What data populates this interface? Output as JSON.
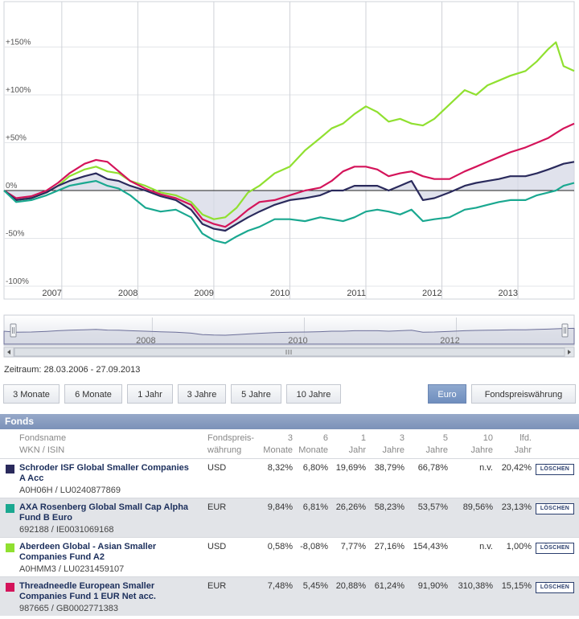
{
  "chart_data": {
    "type": "line",
    "y_ticks": [
      "+150%",
      "+100%",
      "+50%",
      "0%",
      "-50%",
      "-100%"
    ],
    "y_tick_values": [
      150,
      100,
      50,
      0,
      -50,
      -100
    ],
    "ylim": [
      -100,
      150
    ],
    "x_tick_labels": [
      "2007",
      "2008",
      "2009",
      "2010",
      "2011",
      "2012",
      "2013"
    ],
    "x_years": [
      2007,
      2008,
      2009,
      2010,
      2011,
      2012,
      2013
    ],
    "grid": true,
    "series": [
      {
        "color": "#90e030",
        "x": [
          2006.24,
          2006.4,
          2006.6,
          2006.8,
          2006.95,
          2007.1,
          2007.3,
          2007.45,
          2007.6,
          2007.75,
          2007.9,
          2008.1,
          2008.3,
          2008.5,
          2008.7,
          2008.85,
          2009.0,
          2009.15,
          2009.3,
          2009.45,
          2009.6,
          2009.8,
          2010.0,
          2010.2,
          2010.4,
          2010.55,
          2010.7,
          2010.85,
          2011.0,
          2011.15,
          2011.3,
          2011.45,
          2011.6,
          2011.75,
          2011.9,
          2012.1,
          2012.3,
          2012.45,
          2012.6,
          2012.75,
          2012.9,
          2013.1,
          2013.25,
          2013.4,
          2013.5,
          2013.6,
          2013.74
        ],
        "y": [
          0,
          -10,
          -8,
          -2,
          5,
          15,
          22,
          25,
          20,
          18,
          10,
          5,
          -2,
          -5,
          -12,
          -25,
          -30,
          -28,
          -18,
          -2,
          5,
          18,
          25,
          42,
          55,
          65,
          70,
          80,
          88,
          82,
          72,
          75,
          70,
          68,
          75,
          90,
          105,
          100,
          110,
          115,
          120,
          125,
          135,
          148,
          155,
          130,
          125
        ]
      },
      {
        "color": "#d4145a",
        "x": [
          2006.24,
          2006.4,
          2006.6,
          2006.8,
          2006.95,
          2007.1,
          2007.3,
          2007.45,
          2007.6,
          2007.75,
          2007.9,
          2008.1,
          2008.3,
          2008.5,
          2008.7,
          2008.85,
          2009.0,
          2009.15,
          2009.3,
          2009.45,
          2009.6,
          2009.8,
          2010.0,
          2010.2,
          2010.4,
          2010.55,
          2010.7,
          2010.85,
          2011.0,
          2011.15,
          2011.3,
          2011.45,
          2011.6,
          2011.75,
          2011.9,
          2012.1,
          2012.3,
          2012.45,
          2012.6,
          2012.75,
          2012.9,
          2013.1,
          2013.25,
          2013.4,
          2013.5,
          2013.6,
          2013.74
        ],
        "y": [
          0,
          -8,
          -6,
          0,
          8,
          18,
          28,
          32,
          30,
          20,
          10,
          2,
          -4,
          -8,
          -15,
          -30,
          -35,
          -38,
          -30,
          -20,
          -12,
          -10,
          -5,
          0,
          3,
          10,
          20,
          25,
          25,
          22,
          15,
          18,
          20,
          15,
          12,
          12,
          20,
          25,
          30,
          35,
          40,
          45,
          50,
          55,
          60,
          65,
          70
        ]
      },
      {
        "color": "#2a2a5c",
        "x": [
          2006.24,
          2006.4,
          2006.6,
          2006.8,
          2006.95,
          2007.1,
          2007.3,
          2007.45,
          2007.6,
          2007.75,
          2007.9,
          2008.1,
          2008.3,
          2008.5,
          2008.7,
          2008.85,
          2009.0,
          2009.15,
          2009.3,
          2009.45,
          2009.6,
          2009.8,
          2010.0,
          2010.2,
          2010.4,
          2010.55,
          2010.7,
          2010.85,
          2011.0,
          2011.15,
          2011.3,
          2011.45,
          2011.6,
          2011.75,
          2011.9,
          2012.1,
          2012.3,
          2012.45,
          2012.6,
          2012.75,
          2012.9,
          2013.1,
          2013.25,
          2013.4,
          2013.5,
          2013.6,
          2013.74
        ],
        "y": [
          0,
          -10,
          -8,
          -2,
          5,
          10,
          15,
          18,
          12,
          10,
          5,
          0,
          -6,
          -10,
          -20,
          -35,
          -40,
          -42,
          -35,
          -28,
          -22,
          -15,
          -10,
          -8,
          -5,
          0,
          0,
          5,
          5,
          5,
          0,
          5,
          10,
          -10,
          -8,
          -2,
          5,
          8,
          10,
          12,
          15,
          15,
          18,
          22,
          25,
          28,
          30
        ]
      },
      {
        "color": "#1aa890",
        "x": [
          2006.24,
          2006.4,
          2006.6,
          2006.8,
          2006.95,
          2007.1,
          2007.3,
          2007.45,
          2007.6,
          2007.75,
          2007.9,
          2008.1,
          2008.3,
          2008.5,
          2008.7,
          2008.85,
          2009.0,
          2009.15,
          2009.3,
          2009.45,
          2009.6,
          2009.8,
          2010.0,
          2010.2,
          2010.4,
          2010.55,
          2010.7,
          2010.85,
          2011.0,
          2011.15,
          2011.3,
          2011.45,
          2011.6,
          2011.75,
          2011.9,
          2012.1,
          2012.3,
          2012.45,
          2012.6,
          2012.75,
          2012.9,
          2013.1,
          2013.25,
          2013.4,
          2013.5,
          2013.6,
          2013.74
        ],
        "y": [
          0,
          -12,
          -10,
          -5,
          0,
          5,
          8,
          10,
          5,
          2,
          -5,
          -18,
          -22,
          -20,
          -28,
          -45,
          -52,
          -55,
          -48,
          -42,
          -38,
          -30,
          -30,
          -32,
          -28,
          -30,
          -32,
          -28,
          -22,
          -20,
          -22,
          -25,
          -20,
          -32,
          -30,
          -28,
          -20,
          -18,
          -15,
          -12,
          -10,
          -10,
          -5,
          -2,
          0,
          5,
          8
        ]
      }
    ],
    "navigator": {
      "x_tick_labels": [
        "2008",
        "2010",
        "2012"
      ]
    }
  },
  "period": "Zeitraum: 28.03.2006 - 27.09.2013",
  "range_buttons": [
    "3 Monate",
    "6 Monate",
    "1 Jahr",
    "3 Jahre",
    "5 Jahre",
    "10 Jahre"
  ],
  "currency_buttons": [
    "Euro",
    "Fondspreiswährung"
  ],
  "active_currency": "Euro",
  "table": {
    "title": "Fonds",
    "headers": {
      "name1": "Fondsname",
      "name2": "WKN / ISIN",
      "cur1": "Fondspreis-",
      "cur2": "währung",
      "m3a": "3",
      "m3b": "Monate",
      "m6a": "6",
      "m6b": "Monate",
      "y1a": "1",
      "y1b": "Jahr",
      "y3a": "3",
      "y3b": "Jahre",
      "y5a": "5",
      "y5b": "Jahre",
      "y10a": "10",
      "y10b": "Jahre",
      "lfda": "lfd.",
      "lfdb": "Jahr"
    },
    "delete_label": "LÖSCHEN",
    "rows": [
      {
        "color": "#2a2a5c",
        "name_line1": "Schroder ISF Global Smaller Companies",
        "name_line2": "A Acc",
        "isin": "A0H06H / LU0240877869",
        "currency": "USD",
        "m3": "8,32%",
        "m6": "6,80%",
        "y1": "19,69%",
        "y3": "38,79%",
        "y5": "66,78%",
        "y10": "n.v.",
        "lfd": "20,42%"
      },
      {
        "color": "#1aa890",
        "name_line1": "AXA Rosenberg Global Small Cap Alpha",
        "name_line2": "Fund B Euro",
        "isin": "692188 / IE0031069168",
        "currency": "EUR",
        "m3": "9,84%",
        "m6": "6,81%",
        "y1": "26,26%",
        "y3": "58,23%",
        "y5": "53,57%",
        "y10": "89,56%",
        "lfd": "23,13%"
      },
      {
        "color": "#90e030",
        "name_line1": "Aberdeen Global - Asian Smaller",
        "name_line2": "Companies Fund A2",
        "isin": "A0HMM3 / LU0231459107",
        "currency": "USD",
        "m3": "0,58%",
        "m6": "-8,08%",
        "y1": "7,77%",
        "y3": "27,16%",
        "y5": "154,43%",
        "y10": "n.v.",
        "lfd": "1,00%"
      },
      {
        "color": "#d4145a",
        "name_line1": "Threadneedle European Smaller",
        "name_line2": "Companies Fund 1 EUR Net acc.",
        "isin": "987665 / GB0002771383",
        "currency": "EUR",
        "m3": "7,48%",
        "m6": "5,45%",
        "y1": "20,88%",
        "y3": "61,24%",
        "y5": "91,90%",
        "y10": "310,38%",
        "lfd": "15,15%"
      }
    ]
  }
}
